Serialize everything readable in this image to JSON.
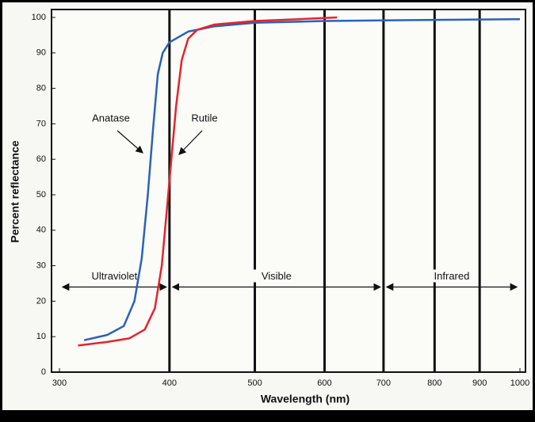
{
  "chart_data": {
    "type": "line",
    "xlabel": "Wavelength (nm)",
    "ylabel": "Percent reflectance",
    "xscale": "log",
    "grid": true,
    "xlim": [
      300,
      1000
    ],
    "ylim": [
      0,
      100
    ],
    "xticks": [
      300,
      400,
      500,
      600,
      700,
      800,
      900,
      1000
    ],
    "yticks": [
      0,
      10,
      20,
      30,
      40,
      50,
      60,
      70,
      80,
      90,
      100
    ],
    "series": [
      {
        "name": "Anatase",
        "color": "#2a62b8",
        "x": [
          320,
          340,
          355,
          365,
          372,
          378,
          383,
          388,
          393,
          400,
          420,
          450,
          500,
          600,
          800,
          1000
        ],
        "values": [
          9,
          10.5,
          13,
          20,
          32,
          50,
          68,
          84,
          90,
          93,
          96,
          97.5,
          98.5,
          99,
          99.3,
          99.5
        ]
      },
      {
        "name": "Rutile",
        "color": "#e4242b",
        "x": [
          315,
          340,
          360,
          375,
          385,
          392,
          397,
          402,
          407,
          413,
          420,
          430,
          450,
          500,
          560,
          620
        ],
        "values": [
          7.5,
          8.5,
          9.5,
          12,
          18,
          30,
          45,
          60,
          75,
          88,
          94,
          96.5,
          98,
          99,
          99.5,
          100
        ]
      }
    ],
    "regions": [
      {
        "label": "Ultraviolet",
        "from": 300,
        "to": 400
      },
      {
        "label": "Visible",
        "from": 400,
        "to": 700
      },
      {
        "label": "Infrared",
        "from": 700,
        "to": 1000
      }
    ]
  }
}
